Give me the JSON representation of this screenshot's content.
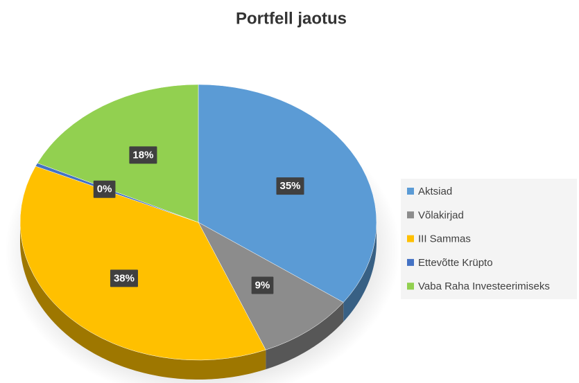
{
  "chart_data": {
    "type": "pie",
    "title": "Portfell jaotus",
    "categories": [
      "Aktsiad",
      "Võlakirjad",
      "III Sammas",
      "Ettevõtte Krüpto",
      "Vaba Raha Investeerimiseks"
    ],
    "values": [
      35,
      9,
      38,
      0.4,
      18
    ],
    "value_labels": [
      "35%",
      "9%",
      "38%",
      "0%",
      "18%"
    ],
    "colors": [
      "#5b9bd5",
      "#8c8c8c",
      "#ffc000",
      "#4472c4",
      "#92d050"
    ],
    "legend": "right"
  }
}
